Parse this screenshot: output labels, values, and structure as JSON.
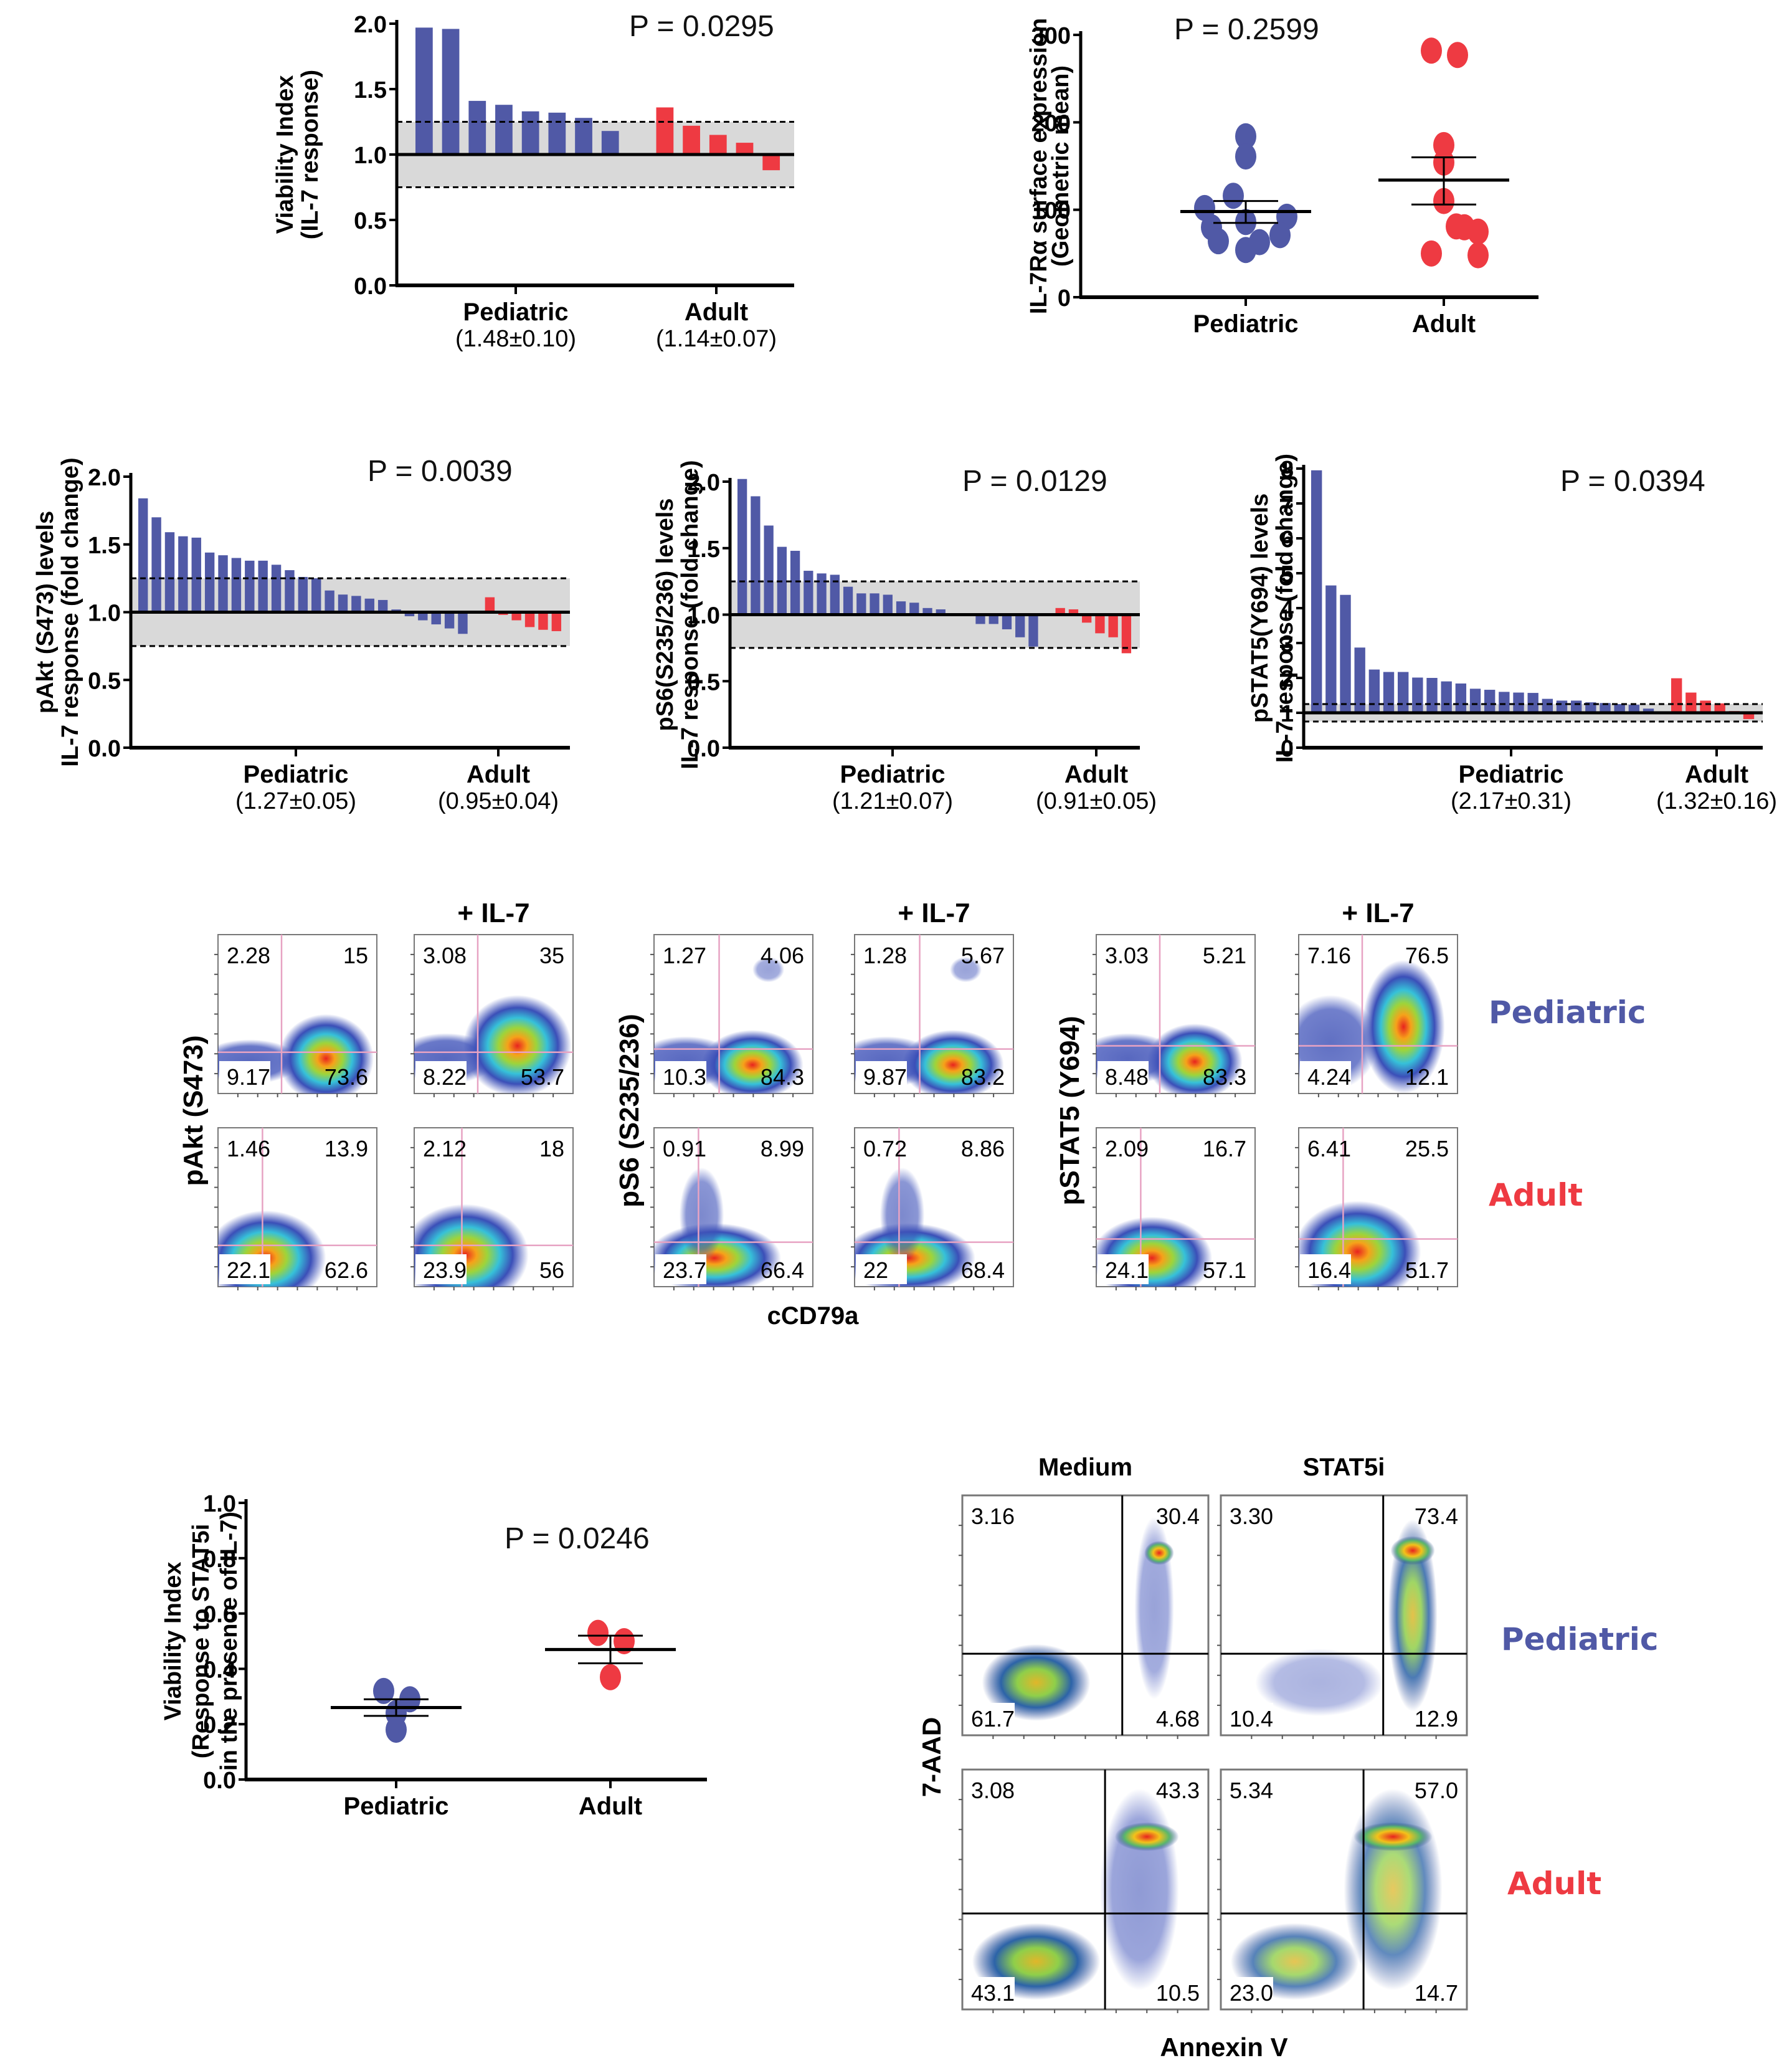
{
  "colors": {
    "pediatric": "#5059A6",
    "adult": "#EE3A42",
    "band": "#D9D9D9",
    "axis": "#000000",
    "gate": "#E7A3C3"
  },
  "chart_data": [
    {
      "id": "viability-il7",
      "type": "bar",
      "ylabel_lines": [
        "Viability Index",
        "(IL-7 response)"
      ],
      "ylim": [
        0,
        2.0
      ],
      "yticks": [
        "0.0",
        "0.5",
        "1.0",
        "1.5",
        "2.0"
      ],
      "ytick_values": [
        0,
        0.5,
        1.0,
        1.5,
        2.0
      ],
      "baseline": 1.0,
      "band": [
        0.75,
        1.25
      ],
      "p_value": "P = 0.0295",
      "series": [
        {
          "name": "Pediatric",
          "summary": "(1.48±0.10)",
          "values": [
            1.97,
            1.96,
            1.41,
            1.38,
            1.33,
            1.32,
            1.28,
            1.18
          ]
        },
        {
          "name": "Adult",
          "summary": "(1.14±0.07)",
          "values": [
            1.36,
            1.22,
            1.15,
            1.09,
            0.88
          ]
        }
      ]
    },
    {
      "id": "il7ra-expression",
      "type": "scatter",
      "ylabel_lines": [
        "IL-7Rα surface expression",
        "(Geometric mean)"
      ],
      "ylim": [
        0,
        300
      ],
      "yticks": [
        "0",
        "100",
        "200",
        "300"
      ],
      "ytick_values": [
        0,
        100,
        200,
        300
      ],
      "p_value": "P = 0.2599",
      "categories": [
        "Pediatric",
        "Adult"
      ],
      "series": [
        {
          "name": "Pediatric",
          "values": [
            184,
            161,
            116,
            102,
            92,
            86,
            80,
            71,
            64,
            63,
            54
          ],
          "mean": 98,
          "sem": [
            85,
            110
          ]
        },
        {
          "name": "Adult",
          "values": [
            282,
            277,
            174,
            154,
            110,
            81,
            80,
            75,
            50,
            48
          ],
          "mean": 134,
          "sem": [
            106,
            160
          ]
        }
      ]
    },
    {
      "id": "pakt-response",
      "type": "bar",
      "ylabel_lines": [
        "pAkt (S473) levels",
        "IL-7 response (fold change)"
      ],
      "ylim": [
        0,
        2.0
      ],
      "yticks": [
        "0.0",
        "0.5",
        "1.0",
        "1.5",
        "2.0"
      ],
      "ytick_values": [
        0,
        0.5,
        1.0,
        1.5,
        2.0
      ],
      "baseline": 1.0,
      "band": [
        0.75,
        1.25
      ],
      "p_value": "P = 0.0039",
      "series": [
        {
          "name": "Pediatric",
          "summary": "(1.27±0.05)",
          "values": [
            1.84,
            1.7,
            1.59,
            1.56,
            1.55,
            1.44,
            1.42,
            1.4,
            1.38,
            1.38,
            1.35,
            1.31,
            1.26,
            1.25,
            1.16,
            1.13,
            1.12,
            1.1,
            1.09,
            1.02,
            0.97,
            0.94,
            0.91,
            0.88,
            0.84
          ]
        },
        {
          "name": "Adult",
          "summary": "(0.95±0.04)",
          "values": [
            1.11,
            0.98,
            0.94,
            0.89,
            0.87,
            0.86
          ]
        }
      ]
    },
    {
      "id": "ps6-response",
      "type": "bar",
      "ylabel_lines": [
        "pS6(S235/236) levels",
        "IL-7 response (fold change)"
      ],
      "ylim": [
        0,
        2.0
      ],
      "yticks": [
        "0.0",
        "0.5",
        "1.0",
        "1.5",
        "2.0"
      ],
      "ytick_values": [
        0,
        0.5,
        1.0,
        1.5,
        2.0
      ],
      "baseline": 1.0,
      "band": [
        0.75,
        1.25
      ],
      "p_value": "P = 0.0129",
      "series": [
        {
          "name": "Pediatric",
          "summary": "(1.21±0.07)",
          "values": [
            2.02,
            1.89,
            1.67,
            1.51,
            1.48,
            1.33,
            1.31,
            1.3,
            1.21,
            1.16,
            1.16,
            1.15,
            1.1,
            1.09,
            1.05,
            1.04,
            1.01,
            0.99,
            0.93,
            0.93,
            0.89,
            0.83,
            0.76
          ]
        },
        {
          "name": "Adult",
          "summary": "(0.91±0.05)",
          "values": [
            1.05,
            1.04,
            0.94,
            0.86,
            0.83,
            0.71
          ]
        }
      ]
    },
    {
      "id": "pstat5-response",
      "type": "bar",
      "ylabel_lines": [
        "pSTAT5(Y694) levels",
        "IL-7 response (fold change)"
      ],
      "ylim": [
        0,
        8
      ],
      "yticks": [
        "0",
        "1",
        "2",
        "3",
        "4",
        "5",
        "6",
        "7",
        "8"
      ],
      "ytick_values": [
        0,
        1,
        2,
        3,
        4,
        5,
        6,
        7,
        8
      ],
      "baseline": 1.0,
      "band": [
        0.75,
        1.25
      ],
      "p_value": "P = 0.0394",
      "series": [
        {
          "name": "Pediatric",
          "summary": "(2.17±0.31)",
          "values": [
            7.95,
            4.65,
            4.38,
            2.87,
            2.24,
            2.17,
            2.17,
            2.01,
            2.0,
            1.9,
            1.84,
            1.69,
            1.66,
            1.6,
            1.58,
            1.57,
            1.4,
            1.35,
            1.35,
            1.3,
            1.28,
            1.25,
            1.23,
            1.12
          ]
        },
        {
          "name": "Adult",
          "summary": "(1.32±0.16)",
          "values": [
            1.99,
            1.58,
            1.35,
            1.27,
            1.05,
            0.82
          ]
        }
      ]
    },
    {
      "id": "viability-stat5i",
      "type": "scatter",
      "ylabel_lines": [
        "Viability Index",
        "(Response to STAT5i",
        "in the presence of IL-7)"
      ],
      "ylim": [
        0,
        1.0
      ],
      "yticks": [
        "0.0",
        "0.2",
        "0.4",
        "0.6",
        "0.8",
        "1.0"
      ],
      "ytick_values": [
        0,
        0.2,
        0.4,
        0.6,
        0.8,
        1.0
      ],
      "p_value": "P = 0.0246",
      "categories": [
        "Pediatric",
        "Adult"
      ],
      "series": [
        {
          "name": "Pediatric",
          "values": [
            0.32,
            0.29,
            0.24,
            0.18
          ],
          "mean": 0.26,
          "sem": [
            0.23,
            0.29
          ]
        },
        {
          "name": "Adult",
          "values": [
            0.53,
            0.5,
            0.37
          ],
          "mean": 0.47,
          "sem": [
            0.42,
            0.52
          ]
        }
      ]
    }
  ],
  "flow_phospho": {
    "column_header": "+ IL-7",
    "xlabel": "cCD79a",
    "row_labels": [
      "Pediatric",
      "Adult"
    ],
    "markers": [
      {
        "ylabel": "pAkt (S473)",
        "plots": [
          {
            "group": "Pediatric",
            "condition": "unstimulated",
            "UL": "2.28",
            "UR": "15",
            "LL": "9.17",
            "LR": "73.6"
          },
          {
            "group": "Pediatric",
            "condition": "+ IL-7",
            "UL": "3.08",
            "UR": "35",
            "LL": "8.22",
            "LR": "53.7"
          },
          {
            "group": "Adult",
            "condition": "unstimulated",
            "UL": "1.46",
            "UR": "13.9",
            "LL": "22.1",
            "LR": "62.6"
          },
          {
            "group": "Adult",
            "condition": "+ IL-7",
            "UL": "2.12",
            "UR": "18",
            "LL": "23.9",
            "LR": "56"
          }
        ]
      },
      {
        "ylabel": "pS6 (S235/236)",
        "plots": [
          {
            "group": "Pediatric",
            "condition": "unstimulated",
            "UL": "1.27",
            "UR": "4.06",
            "LL": "10.3",
            "LR": "84.3"
          },
          {
            "group": "Pediatric",
            "condition": "+ IL-7",
            "UL": "1.28",
            "UR": "5.67",
            "LL": "9.87",
            "LR": "83.2"
          },
          {
            "group": "Adult",
            "condition": "unstimulated",
            "UL": "0.91",
            "UR": "8.99",
            "LL": "23.7",
            "LR": "66.4"
          },
          {
            "group": "Adult",
            "condition": "+ IL-7",
            "UL": "0.72",
            "UR": "8.86",
            "LL": "22",
            "LR": "68.4"
          }
        ]
      },
      {
        "ylabel": "pSTAT5 (Y694)",
        "plots": [
          {
            "group": "Pediatric",
            "condition": "unstimulated",
            "UL": "3.03",
            "UR": "5.21",
            "LL": "8.48",
            "LR": "83.3"
          },
          {
            "group": "Pediatric",
            "condition": "+ IL-7",
            "UL": "7.16",
            "UR": "76.5",
            "LL": "4.24",
            "LR": "12.1"
          },
          {
            "group": "Adult",
            "condition": "unstimulated",
            "UL": "2.09",
            "UR": "16.7",
            "LL": "24.1",
            "LR": "57.1"
          },
          {
            "group": "Adult",
            "condition": "+ IL-7",
            "UL": "6.41",
            "UR": "25.5",
            "LL": "16.4",
            "LR": "51.7"
          }
        ]
      }
    ]
  },
  "flow_apoptosis": {
    "column_headers": [
      "Medium",
      "STAT5i"
    ],
    "ylabel": "7-AAD",
    "xlabel": "Annexin V",
    "row_labels": [
      "Pediatric",
      "Adult"
    ],
    "plots": [
      {
        "group": "Pediatric",
        "condition": "Medium",
        "UL": "3.16",
        "UR": "30.4",
        "LL": "61.7",
        "LR": "4.68"
      },
      {
        "group": "Pediatric",
        "condition": "STAT5i",
        "UL": "3.30",
        "UR": "73.4",
        "LL": "10.4",
        "LR": "12.9"
      },
      {
        "group": "Adult",
        "condition": "Medium",
        "UL": "3.08",
        "UR": "43.3",
        "LL": "43.1",
        "LR": "10.5"
      },
      {
        "group": "Adult",
        "condition": "STAT5i",
        "UL": "5.34",
        "UR": "57.0",
        "LL": "23.0",
        "LR": "14.7"
      }
    ]
  }
}
